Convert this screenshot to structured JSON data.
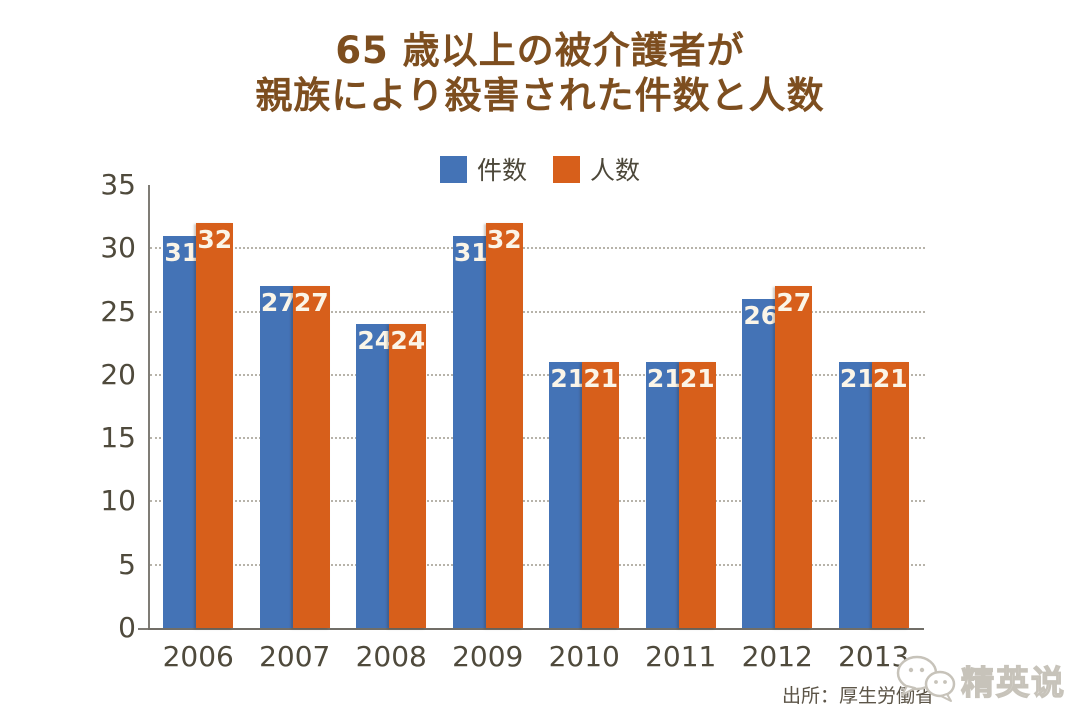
{
  "title": {
    "line1": "65 歳以上の被介護者が",
    "line2": "親族により殺害された件数と人数"
  },
  "chart_data": {
    "type": "bar",
    "title": "65 歳以上の被介護者が親族により殺害された件数と人数",
    "categories": [
      "2006",
      "2007",
      "2008",
      "2009",
      "2010",
      "2011",
      "2012",
      "2013"
    ],
    "series": [
      {
        "name": "件数",
        "color": "#4473b6",
        "values": [
          31,
          27,
          24,
          31,
          21,
          21,
          26,
          21
        ]
      },
      {
        "name": "人数",
        "color": "#d75f1b",
        "values": [
          32,
          27,
          24,
          32,
          21,
          21,
          27,
          21
        ]
      }
    ],
    "xlabel": "",
    "ylabel": "",
    "ylim": [
      0,
      35
    ],
    "yticks": [
      0,
      5,
      10,
      15,
      20,
      25,
      30,
      35
    ],
    "grid_values": [
      5,
      10,
      15,
      20,
      25,
      30
    ],
    "grid_style": "dotted-horizontal",
    "legend_position": "top-center",
    "value_labels": "inside-top"
  },
  "source": "出所：厚生労働省",
  "watermark": {
    "text": "精英说",
    "icon": "wechat-bubbles-icon"
  },
  "colors": {
    "background": "#ffffff",
    "title_text": "#7d4e1f",
    "axis_line": "#7f7c75",
    "gridline": "#b7b3aa",
    "tick_label": "#4f4a3c",
    "bar_value_label": "#fbf5e8",
    "source_text": "#5c5548",
    "watermark": "#c7c3ba"
  }
}
